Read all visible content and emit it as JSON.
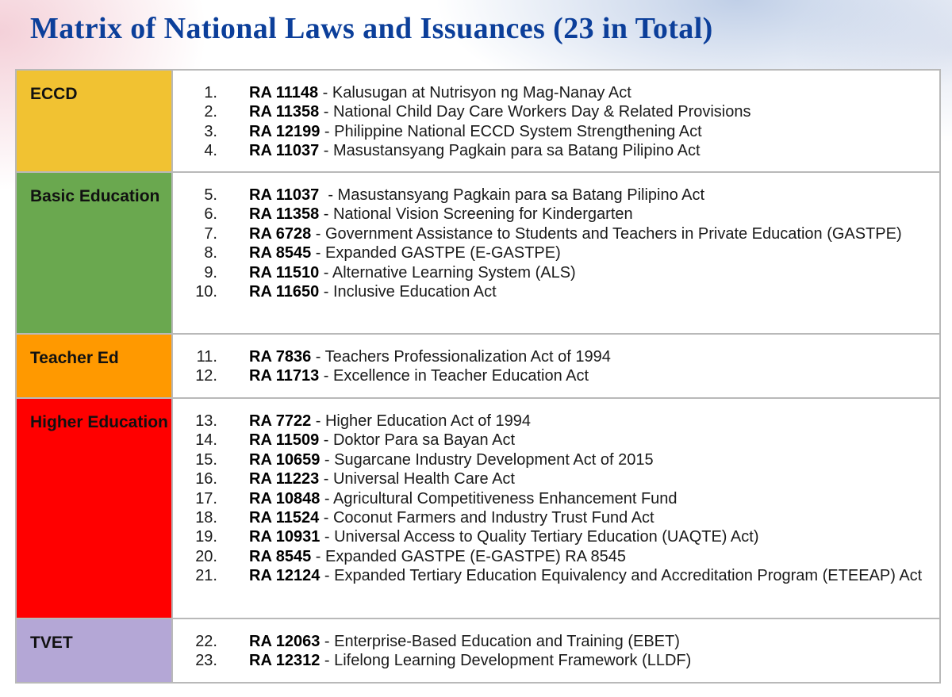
{
  "title": "Matrix of National Laws and Issuances (23 in Total)",
  "categories": [
    {
      "label": "ECCD",
      "color": "#f1c232",
      "items": [
        {
          "num": "1.",
          "code": "RA 11148",
          "desc": " - Kalusugan at Nutrisyon ng Mag-Nanay Act"
        },
        {
          "num": "2.",
          "code": "RA 11358",
          "desc": " - National Child Day Care Workers Day & Related Provisions"
        },
        {
          "num": "3.",
          "code": "RA 12199",
          "desc": " - Philippine National ECCD System Strengthening Act"
        },
        {
          "num": "4.",
          "code": "RA 11037",
          "desc": " - Masustansyang Pagkain para sa Batang Pilipino Act"
        }
      ]
    },
    {
      "label": "Basic Education",
      "color": "#6aa84f",
      "items": [
        {
          "num": "5.",
          "code": "RA 11037",
          "desc": "  - Masustansyang Pagkain para sa Batang Pilipino Act"
        },
        {
          "num": "6.",
          "code": "RA 11358",
          "desc": " - National Vision Screening for Kindergarten"
        },
        {
          "num": "7.",
          "code": "RA 6728",
          "desc": " - Government Assistance to Students and Teachers in Private Education (GASTPE)"
        },
        {
          "num": "8.",
          "code": "RA 8545",
          "desc": " - Expanded GASTPE (E-GASTPE)"
        },
        {
          "num": "9.",
          "code": "RA 11510",
          "desc": " - Alternative Learning System (ALS)"
        },
        {
          "num": "10.",
          "code": "RA 11650",
          "desc": " - Inclusive Education Act"
        }
      ]
    },
    {
      "label": "Teacher Ed",
      "color": "#ff9900",
      "items": [
        {
          "num": "11.",
          "code": "RA 7836",
          "desc": " - Teachers Professionalization Act of 1994"
        },
        {
          "num": "12.",
          "code": "RA 11713",
          "desc": " - Excellence in Teacher Education Act"
        }
      ]
    },
    {
      "label": "Higher Education",
      "color": "#ff0000",
      "items": [
        {
          "num": "13.",
          "code": "RA 7722",
          "desc": " - Higher Education Act of 1994"
        },
        {
          "num": "14.",
          "code": "RA 11509",
          "desc": " - Doktor Para sa Bayan Act"
        },
        {
          "num": "15.",
          "code": "RA 10659",
          "desc": " - Sugarcane Industry Development Act of 2015"
        },
        {
          "num": "16.",
          "code": "RA 11223",
          "desc": " - Universal Health Care Act"
        },
        {
          "num": "17.",
          "code": "RA 10848",
          "desc": " - Agricultural Competitiveness Enhancement Fund"
        },
        {
          "num": "18.",
          "code": "RA 11524",
          "desc": " - Coconut Farmers and Industry Trust Fund Act"
        },
        {
          "num": "19.",
          "code": "RA 10931",
          "desc": " - Universal Access to Quality Tertiary Education (UAQTE) Act)"
        },
        {
          "num": "20.",
          "code": "RA 8545",
          "desc": " - Expanded GASTPE (E-GASTPE) RA 8545"
        },
        {
          "num": "21.",
          "code": "RA 12124",
          "desc": " - Expanded Tertiary Education Equivalency and Accreditation Program (ETEEAP) Act"
        }
      ]
    },
    {
      "label": "TVET",
      "color": "#b4a7d6",
      "items": [
        {
          "num": "22.",
          "code": "RA 12063",
          "desc": " - Enterprise-Based Education and Training (EBET)"
        },
        {
          "num": "23.",
          "code": "RA 12312",
          "desc": " - Lifelong Learning Development Framework (LLDF)"
        }
      ]
    }
  ]
}
